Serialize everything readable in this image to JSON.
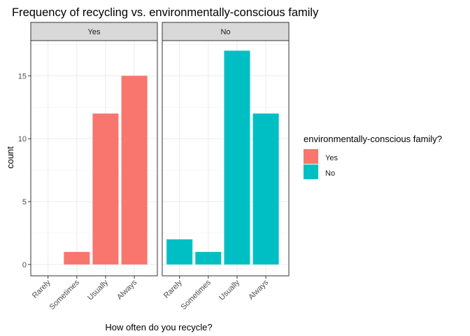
{
  "chart_data": {
    "type": "bar",
    "title": "Frequency of recycling vs. environmentally-conscious family",
    "xlabel": "How often do you recycle?",
    "ylabel": "count",
    "categories": [
      "Rarely",
      "Sometimes",
      "Usually",
      "Always"
    ],
    "ylim": [
      -0.9,
      17.8
    ],
    "yticks": [
      0,
      5,
      10,
      15
    ],
    "grid": true,
    "facets": [
      {
        "label": "Yes",
        "color": "#F8766D",
        "values": [
          0,
          1,
          12,
          15
        ]
      },
      {
        "label": "No",
        "color": "#00BFC4",
        "values": [
          2,
          1,
          17,
          12
        ]
      }
    ],
    "legend": {
      "title": "environmentally-conscious family?",
      "position": "right",
      "items": [
        {
          "label": "Yes",
          "color": "#F8766D"
        },
        {
          "label": "No",
          "color": "#00BFC4"
        }
      ]
    }
  }
}
